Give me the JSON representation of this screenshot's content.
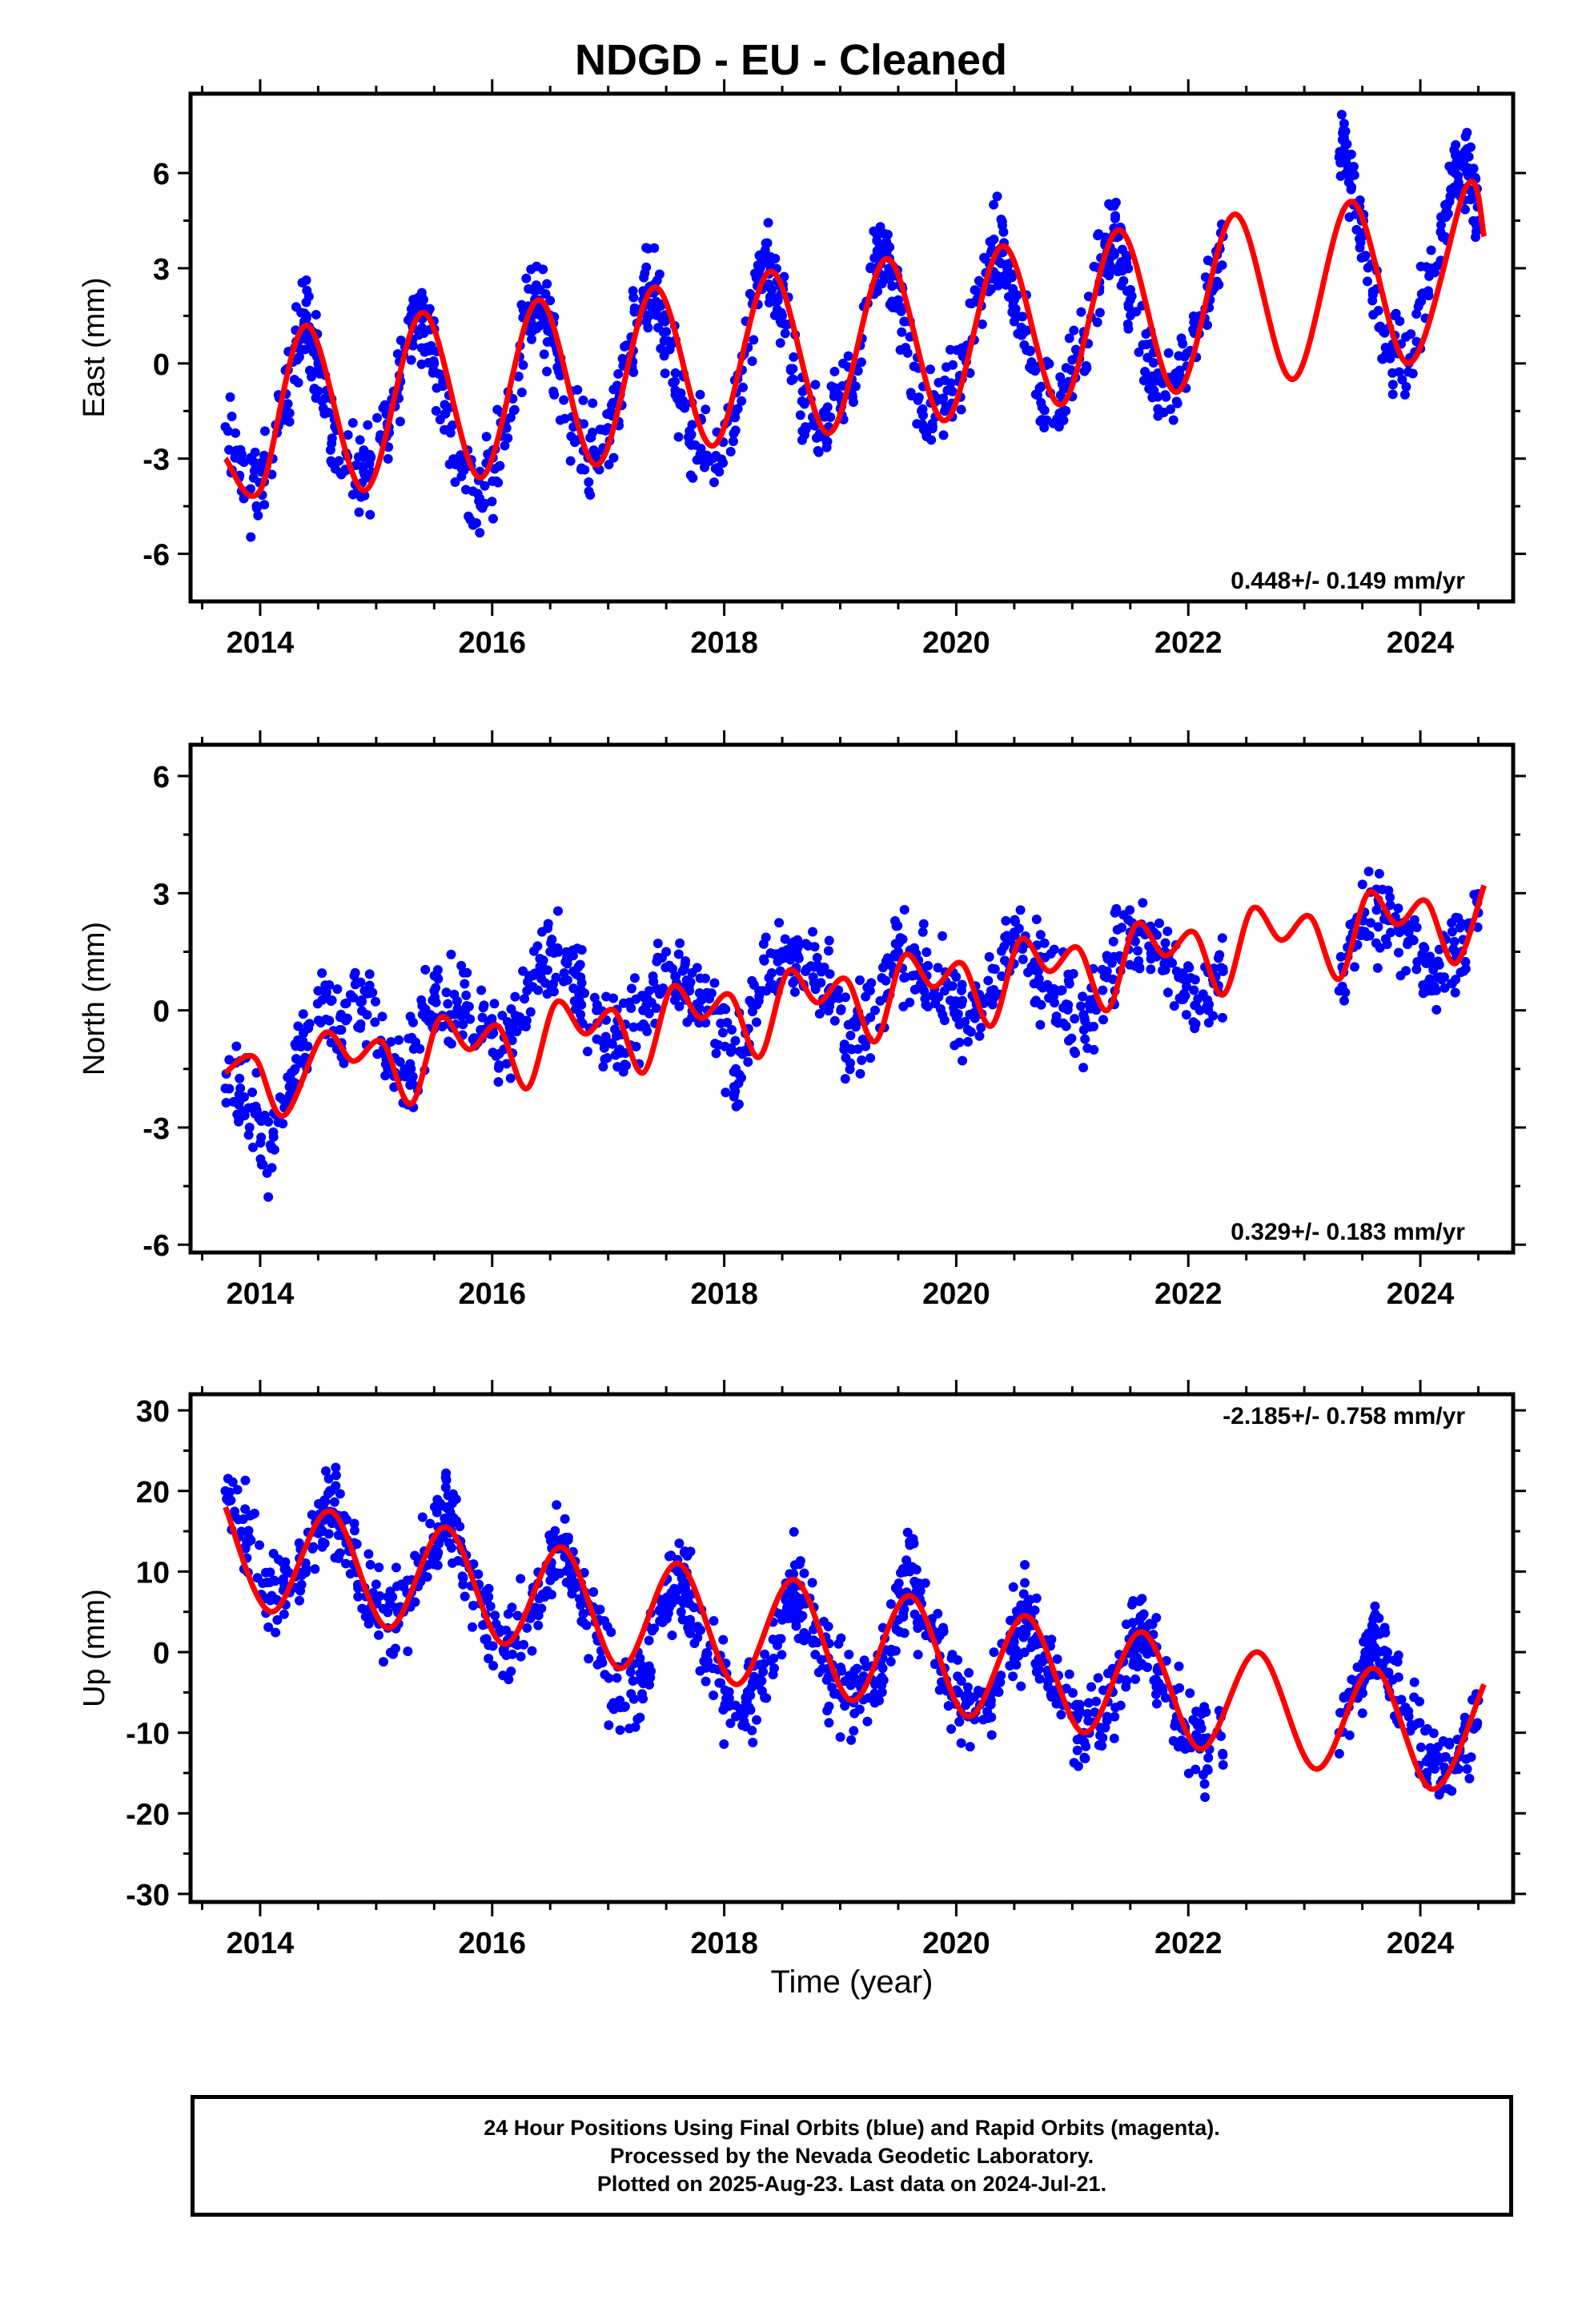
{
  "title": "NDGD  - EU - Cleaned",
  "xlabel": "Time (year)",
  "caption": {
    "line1": "24 Hour Positions Using Final Orbits (blue) and Rapid Orbits (magenta).",
    "line2": "Processed by the Nevada Geodetic Laboratory.",
    "line3": "Plotted on 2025-Aug-23. Last data on 2024-Jul-21."
  },
  "colors": {
    "points": "#0000ff",
    "model": "#ff0000",
    "axes": "#000000"
  },
  "chart_data": [
    {
      "type": "scatter",
      "ylabel": "East (mm)",
      "annotation": "0.448+/- 0.149 mm/yr",
      "xlim": [
        2013.4,
        2024.8
      ],
      "ylim": [
        -7.5,
        8.5
      ],
      "xticks": [
        2014,
        2016,
        2018,
        2020,
        2022,
        2024
      ],
      "yticks": [
        -6,
        -3,
        0,
        3,
        6
      ],
      "series": [
        {
          "kind": "points",
          "x": [
            2013.7,
            2013.9,
            2014.1,
            2014.3,
            2014.4,
            2014.5,
            2014.7,
            2014.9,
            2015.1,
            2015.3,
            2015.4,
            2015.5,
            2015.7,
            2015.9,
            2016.1,
            2016.3,
            2016.4,
            2016.5,
            2016.7,
            2016.9,
            2017.1,
            2017.3,
            2017.4,
            2017.5,
            2017.7,
            2017.9,
            2018.1,
            2018.3,
            2018.4,
            2018.5,
            2018.7,
            2018.9,
            2019.1,
            2019.3,
            2019.4,
            2019.5,
            2019.7,
            2019.9,
            2020.1,
            2020.3,
            2020.4,
            2020.5,
            2020.7,
            2020.9,
            2021.1,
            2021.3,
            2021.4,
            2021.5,
            2021.7,
            2021.9,
            2022.1,
            2022.3,
            2023.3,
            2023.4,
            2023.5,
            2023.7,
            2023.9,
            2024.1,
            2024.3,
            2024.4,
            2024.5
          ],
          "y": [
            -2.0,
            -4.0,
            -3.5,
            0.5,
            1.5,
            0.0,
            -3.5,
            -3.5,
            -2.0,
            1.5,
            1.5,
            0.0,
            -3.0,
            -4.5,
            -2.0,
            1.5,
            2.0,
            1.0,
            -2.0,
            -3.0,
            -1.0,
            2.0,
            2.5,
            1.0,
            -2.5,
            -3.0,
            -1.5,
            2.5,
            3.0,
            1.5,
            -2.0,
            -2.0,
            -0.5,
            3.0,
            3.5,
            2.0,
            -1.5,
            -1.5,
            0.5,
            3.5,
            3.5,
            2.0,
            -1.0,
            -1.0,
            1.0,
            3.5,
            4.0,
            2.0,
            -0.5,
            -0.5,
            1.5,
            4.0,
            6.5,
            6.0,
            4.0,
            0.5,
            0.0,
            3.0,
            6.0,
            6.5,
            4.5
          ]
        },
        {
          "kind": "model",
          "label": "",
          "x": [
            2013.7,
            2014.0,
            2014.4,
            2014.9,
            2015.4,
            2015.9,
            2016.4,
            2016.9,
            2017.4,
            2017.9,
            2018.4,
            2018.9,
            2019.4,
            2019.9,
            2020.4,
            2020.9,
            2021.4,
            2021.9,
            2022.4,
            2022.9,
            2023.4,
            2023.9,
            2024.4,
            2024.55
          ],
          "y": [
            -3.0,
            -4.0,
            1.2,
            -4.0,
            1.6,
            -3.6,
            2.0,
            -3.2,
            2.4,
            -2.6,
            2.9,
            -2.2,
            3.3,
            -1.8,
            3.7,
            -1.3,
            4.2,
            -0.9,
            4.7,
            -0.5,
            5.1,
            0.0,
            5.6,
            4.0
          ]
        }
      ]
    },
    {
      "type": "scatter",
      "ylabel": "North (mm)",
      "annotation": "0.329+/- 0.183 mm/yr",
      "xlim": [
        2013.4,
        2024.8
      ],
      "ylim": [
        -6.2,
        6.8
      ],
      "xticks": [
        2014,
        2016,
        2018,
        2020,
        2022,
        2024
      ],
      "yticks": [
        -6,
        -3,
        0,
        3,
        6
      ],
      "series": [
        {
          "kind": "points",
          "x": [
            2013.7,
            2013.9,
            2014.1,
            2014.3,
            2014.5,
            2014.7,
            2014.9,
            2015.1,
            2015.3,
            2015.5,
            2015.7,
            2015.9,
            2016.1,
            2016.3,
            2016.5,
            2016.7,
            2016.9,
            2017.1,
            2017.3,
            2017.5,
            2017.7,
            2017.9,
            2018.1,
            2018.3,
            2018.5,
            2018.7,
            2018.9,
            2019.1,
            2019.3,
            2019.5,
            2019.7,
            2019.9,
            2020.1,
            2020.3,
            2020.5,
            2020.7,
            2020.9,
            2021.1,
            2021.3,
            2021.5,
            2021.7,
            2021.9,
            2022.1,
            2022.3,
            2023.3,
            2023.5,
            2023.7,
            2023.9,
            2024.1,
            2024.3,
            2024.5
          ],
          "y": [
            -2.0,
            -2.5,
            -3.5,
            -1.5,
            0.5,
            -0.5,
            0.5,
            -1.5,
            -1.5,
            0.5,
            0.0,
            -0.5,
            -1.0,
            0.5,
            1.5,
            1.0,
            0.0,
            -1.0,
            0.0,
            1.5,
            0.5,
            0.0,
            -1.5,
            0.5,
            1.5,
            1.0,
            0.5,
            -1.0,
            0.0,
            1.5,
            1.0,
            0.5,
            -0.5,
            0.5,
            2.0,
            1.0,
            0.5,
            -0.5,
            1.0,
            2.0,
            1.5,
            1.0,
            0.0,
            1.0,
            0.5,
            2.5,
            2.5,
            2.0,
            0.5,
            1.5,
            2.5
          ]
        },
        {
          "kind": "model",
          "label": "",
          "x": [
            2013.7,
            2013.95,
            2014.2,
            2014.55,
            2014.8,
            2015.05,
            2015.3,
            2015.55,
            2015.8,
            2016.05,
            2016.3,
            2016.55,
            2016.8,
            2017.05,
            2017.3,
            2017.55,
            2017.8,
            2018.05,
            2018.3,
            2018.55,
            2018.8,
            2019.05,
            2019.3,
            2019.55,
            2019.8,
            2020.05,
            2020.3,
            2020.55,
            2020.8,
            2021.05,
            2021.3,
            2021.55,
            2021.8,
            2022.05,
            2022.3,
            2022.55,
            2022.8,
            2023.05,
            2023.3,
            2023.55,
            2023.8,
            2024.05,
            2024.3,
            2024.55
          ],
          "y": [
            -1.6,
            -1.2,
            -2.7,
            -0.6,
            -1.3,
            -0.8,
            -2.4,
            -0.2,
            -1.0,
            -0.4,
            -2.0,
            0.2,
            -0.6,
            0.0,
            -1.6,
            0.6,
            -0.2,
            0.4,
            -1.2,
            1.0,
            0.2,
            0.8,
            -0.8,
            1.4,
            0.6,
            1.2,
            -0.4,
            1.8,
            1.0,
            1.6,
            0.0,
            2.2,
            1.4,
            2.0,
            0.4,
            2.6,
            1.8,
            2.4,
            0.8,
            3.0,
            2.2,
            2.8,
            1.2,
            3.2
          ]
        }
      ]
    },
    {
      "type": "scatter",
      "ylabel": "Up (mm)",
      "annotation": "-2.185+/- 0.758 mm/yr",
      "xlim": [
        2013.4,
        2024.8
      ],
      "ylim": [
        -31,
        32
      ],
      "xticks": [
        2014,
        2016,
        2018,
        2020,
        2022,
        2024
      ],
      "yticks": [
        -30,
        -20,
        -10,
        0,
        10,
        20,
        30
      ],
      "series": [
        {
          "kind": "points",
          "x": [
            2013.7,
            2013.9,
            2014.1,
            2014.3,
            2014.5,
            2014.6,
            2014.7,
            2014.9,
            2015.1,
            2015.3,
            2015.5,
            2015.6,
            2015.7,
            2015.9,
            2016.1,
            2016.3,
            2016.5,
            2016.6,
            2016.7,
            2016.9,
            2017.1,
            2017.3,
            2017.5,
            2017.6,
            2017.7,
            2017.9,
            2018.1,
            2018.3,
            2018.5,
            2018.6,
            2018.7,
            2018.9,
            2019.1,
            2019.3,
            2019.5,
            2019.6,
            2019.7,
            2019.9,
            2020.1,
            2020.3,
            2020.5,
            2020.6,
            2020.7,
            2020.9,
            2021.1,
            2021.3,
            2021.5,
            2021.6,
            2021.7,
            2021.9,
            2022.1,
            2022.3,
            2023.3,
            2023.5,
            2023.6,
            2023.7,
            2023.9,
            2024.1,
            2024.3,
            2024.5
          ],
          "y": [
            20.0,
            14.0,
            7.0,
            8.0,
            15.0,
            20.0,
            16.0,
            8.0,
            3.0,
            6.0,
            14.0,
            18.0,
            14.0,
            6.0,
            0.0,
            3.0,
            10.0,
            14.0,
            10.0,
            2.0,
            -6.0,
            -2.0,
            6.0,
            10.0,
            6.0,
            -2.0,
            -8.0,
            -4.0,
            4.0,
            8.0,
            6.0,
            -2.0,
            -6.0,
            -4.0,
            4.0,
            10.0,
            6.0,
            -2.0,
            -8.0,
            -6.0,
            2.0,
            4.0,
            2.0,
            -6.0,
            -10.0,
            -8.0,
            0.0,
            3.0,
            0.0,
            -8.0,
            -12.0,
            -14.0,
            -10.0,
            -2.0,
            2.0,
            0.0,
            -8.0,
            -14.0,
            -14.0,
            -6.0
          ]
        },
        {
          "kind": "model",
          "label": "",
          "x": [
            2013.7,
            2014.1,
            2014.6,
            2015.1,
            2015.6,
            2016.1,
            2016.6,
            2017.1,
            2017.6,
            2018.1,
            2018.6,
            2019.1,
            2019.6,
            2020.1,
            2020.6,
            2021.1,
            2021.6,
            2022.1,
            2022.6,
            2023.1,
            2023.6,
            2024.1,
            2024.55
          ],
          "y": [
            18.0,
            5.0,
            17.5,
            3.0,
            15.5,
            1.0,
            13.0,
            -2.0,
            11.0,
            -4.0,
            9.0,
            -6.0,
            7.0,
            -8.0,
            4.5,
            -10.0,
            2.5,
            -12.0,
            0.0,
            -14.5,
            -2.0,
            -17.0,
            -4.0
          ]
        }
      ]
    }
  ]
}
